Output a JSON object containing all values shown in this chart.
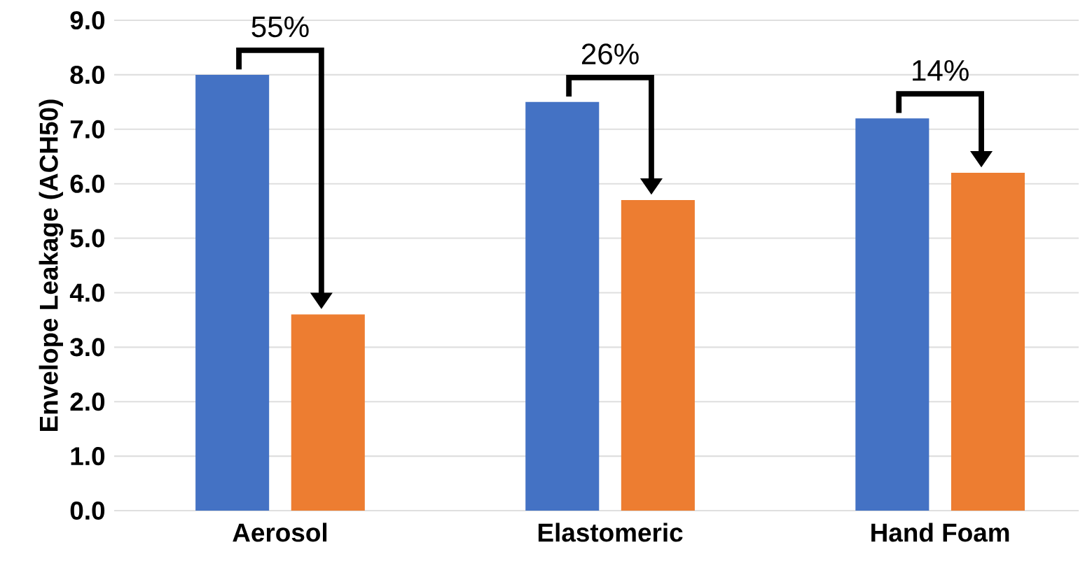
{
  "chart_data": {
    "type": "bar",
    "ylabel": "Envelope Leakage (ACH50)",
    "categories": [
      "Aerosol",
      "Elastomeric",
      "Hand Foam"
    ],
    "series": [
      {
        "color": "#4472c4",
        "values": [
          8.0,
          7.5,
          7.2
        ]
      },
      {
        "color": "#ed7d31",
        "values": [
          3.6,
          5.7,
          6.2
        ]
      }
    ],
    "ylim": [
      0,
      9
    ],
    "yticks": [
      {
        "value": 0,
        "label": "0.0"
      },
      {
        "value": 1,
        "label": "1.0"
      },
      {
        "value": 2,
        "label": "2.0"
      },
      {
        "value": 3,
        "label": "3.0"
      },
      {
        "value": 4,
        "label": "4.0"
      },
      {
        "value": 5,
        "label": "5.0"
      },
      {
        "value": 6,
        "label": "6.0"
      },
      {
        "value": 7,
        "label": "7.0"
      },
      {
        "value": 8,
        "label": "8.0"
      },
      {
        "value": 9,
        "label": "9.0"
      }
    ],
    "grid": "y",
    "annotations": [
      "55%",
      "26%",
      "14%"
    ]
  }
}
